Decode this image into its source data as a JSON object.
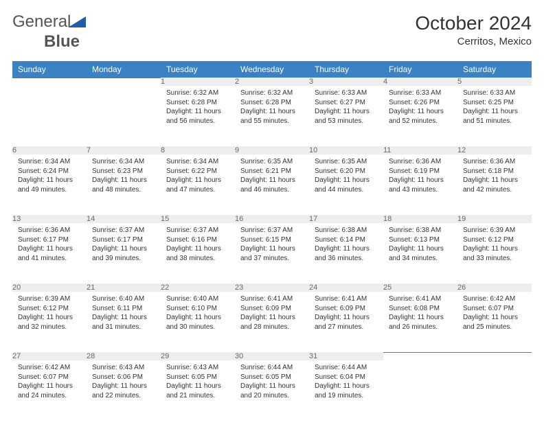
{
  "logo": {
    "text1": "General",
    "text2": "Blue"
  },
  "title": "October 2024",
  "location": "Cerritos, Mexico",
  "header_bg": "#3b82c4",
  "days_of_week": [
    "Sunday",
    "Monday",
    "Tuesday",
    "Wednesday",
    "Thursday",
    "Friday",
    "Saturday"
  ],
  "style": {
    "background_color": "#ffffff",
    "header_text_color": "#ffffff",
    "daynum_bg": "#eeeeee",
    "daynum_color": "#666666",
    "body_font_size": 10,
    "header_font_size": 12,
    "title_font_size": 28,
    "location_font_size": 15,
    "grid_line_color": "#3b82c4",
    "cell_text_color": "#333333"
  },
  "weeks": [
    [
      null,
      null,
      {
        "n": "1",
        "sunrise": "6:32 AM",
        "sunset": "6:28 PM",
        "daylight": "11 hours and 56 minutes."
      },
      {
        "n": "2",
        "sunrise": "6:32 AM",
        "sunset": "6:28 PM",
        "daylight": "11 hours and 55 minutes."
      },
      {
        "n": "3",
        "sunrise": "6:33 AM",
        "sunset": "6:27 PM",
        "daylight": "11 hours and 53 minutes."
      },
      {
        "n": "4",
        "sunrise": "6:33 AM",
        "sunset": "6:26 PM",
        "daylight": "11 hours and 52 minutes."
      },
      {
        "n": "5",
        "sunrise": "6:33 AM",
        "sunset": "6:25 PM",
        "daylight": "11 hours and 51 minutes."
      }
    ],
    [
      {
        "n": "6",
        "sunrise": "6:34 AM",
        "sunset": "6:24 PM",
        "daylight": "11 hours and 49 minutes."
      },
      {
        "n": "7",
        "sunrise": "6:34 AM",
        "sunset": "6:23 PM",
        "daylight": "11 hours and 48 minutes."
      },
      {
        "n": "8",
        "sunrise": "6:34 AM",
        "sunset": "6:22 PM",
        "daylight": "11 hours and 47 minutes."
      },
      {
        "n": "9",
        "sunrise": "6:35 AM",
        "sunset": "6:21 PM",
        "daylight": "11 hours and 46 minutes."
      },
      {
        "n": "10",
        "sunrise": "6:35 AM",
        "sunset": "6:20 PM",
        "daylight": "11 hours and 44 minutes."
      },
      {
        "n": "11",
        "sunrise": "6:36 AM",
        "sunset": "6:19 PM",
        "daylight": "11 hours and 43 minutes."
      },
      {
        "n": "12",
        "sunrise": "6:36 AM",
        "sunset": "6:18 PM",
        "daylight": "11 hours and 42 minutes."
      }
    ],
    [
      {
        "n": "13",
        "sunrise": "6:36 AM",
        "sunset": "6:17 PM",
        "daylight": "11 hours and 41 minutes."
      },
      {
        "n": "14",
        "sunrise": "6:37 AM",
        "sunset": "6:17 PM",
        "daylight": "11 hours and 39 minutes."
      },
      {
        "n": "15",
        "sunrise": "6:37 AM",
        "sunset": "6:16 PM",
        "daylight": "11 hours and 38 minutes."
      },
      {
        "n": "16",
        "sunrise": "6:37 AM",
        "sunset": "6:15 PM",
        "daylight": "11 hours and 37 minutes."
      },
      {
        "n": "17",
        "sunrise": "6:38 AM",
        "sunset": "6:14 PM",
        "daylight": "11 hours and 36 minutes."
      },
      {
        "n": "18",
        "sunrise": "6:38 AM",
        "sunset": "6:13 PM",
        "daylight": "11 hours and 34 minutes."
      },
      {
        "n": "19",
        "sunrise": "6:39 AM",
        "sunset": "6:12 PM",
        "daylight": "11 hours and 33 minutes."
      }
    ],
    [
      {
        "n": "20",
        "sunrise": "6:39 AM",
        "sunset": "6:12 PM",
        "daylight": "11 hours and 32 minutes."
      },
      {
        "n": "21",
        "sunrise": "6:40 AM",
        "sunset": "6:11 PM",
        "daylight": "11 hours and 31 minutes."
      },
      {
        "n": "22",
        "sunrise": "6:40 AM",
        "sunset": "6:10 PM",
        "daylight": "11 hours and 30 minutes."
      },
      {
        "n": "23",
        "sunrise": "6:41 AM",
        "sunset": "6:09 PM",
        "daylight": "11 hours and 28 minutes."
      },
      {
        "n": "24",
        "sunrise": "6:41 AM",
        "sunset": "6:09 PM",
        "daylight": "11 hours and 27 minutes."
      },
      {
        "n": "25",
        "sunrise": "6:41 AM",
        "sunset": "6:08 PM",
        "daylight": "11 hours and 26 minutes."
      },
      {
        "n": "26",
        "sunrise": "6:42 AM",
        "sunset": "6:07 PM",
        "daylight": "11 hours and 25 minutes."
      }
    ],
    [
      {
        "n": "27",
        "sunrise": "6:42 AM",
        "sunset": "6:07 PM",
        "daylight": "11 hours and 24 minutes."
      },
      {
        "n": "28",
        "sunrise": "6:43 AM",
        "sunset": "6:06 PM",
        "daylight": "11 hours and 22 minutes."
      },
      {
        "n": "29",
        "sunrise": "6:43 AM",
        "sunset": "6:05 PM",
        "daylight": "11 hours and 21 minutes."
      },
      {
        "n": "30",
        "sunrise": "6:44 AM",
        "sunset": "6:05 PM",
        "daylight": "11 hours and 20 minutes."
      },
      {
        "n": "31",
        "sunrise": "6:44 AM",
        "sunset": "6:04 PM",
        "daylight": "11 hours and 19 minutes."
      },
      null,
      null
    ]
  ],
  "labels": {
    "sunrise": "Sunrise:",
    "sunset": "Sunset:",
    "daylight": "Daylight:"
  }
}
